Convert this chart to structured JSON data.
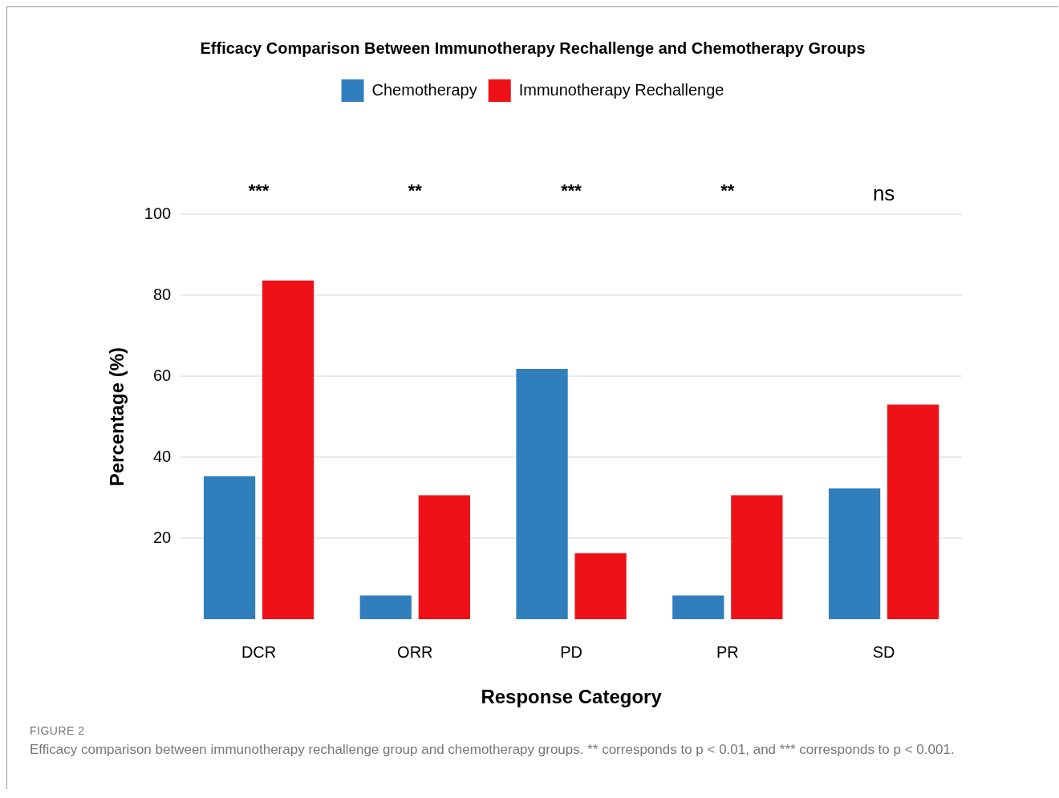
{
  "chart_data": {
    "type": "bar",
    "title": "Efficacy Comparison Between Immunotherapy Rechallenge and Chemotherapy Groups",
    "xlabel": "Response Category",
    "ylabel": "Percentage (%)",
    "categories": [
      "DCR",
      "ORR",
      "PD",
      "PR",
      "SD"
    ],
    "series": [
      {
        "name": "Chemotherapy",
        "color": "#317ebd",
        "values": [
          35.3,
          5.9,
          61.8,
          5.9,
          32.3
        ]
      },
      {
        "name": "Immunotherapy Rechallenge",
        "color": "#ee1118",
        "values": [
          83.6,
          30.6,
          16.3,
          30.6,
          53.0
        ]
      }
    ],
    "ylim": [
      0,
      100
    ],
    "yticks": [
      20,
      40,
      60,
      80,
      100
    ],
    "grid": "y",
    "legend": "top",
    "annotations": [
      "***",
      "**",
      "***",
      "**",
      "ns",
      "FIGURE 2",
      "Efficacy comparison between immunotherapy rechallenge group and chemotherapy groups. ** corresponds to p < 0.01, and *** corresponds to p < 0.001."
    ]
  }
}
